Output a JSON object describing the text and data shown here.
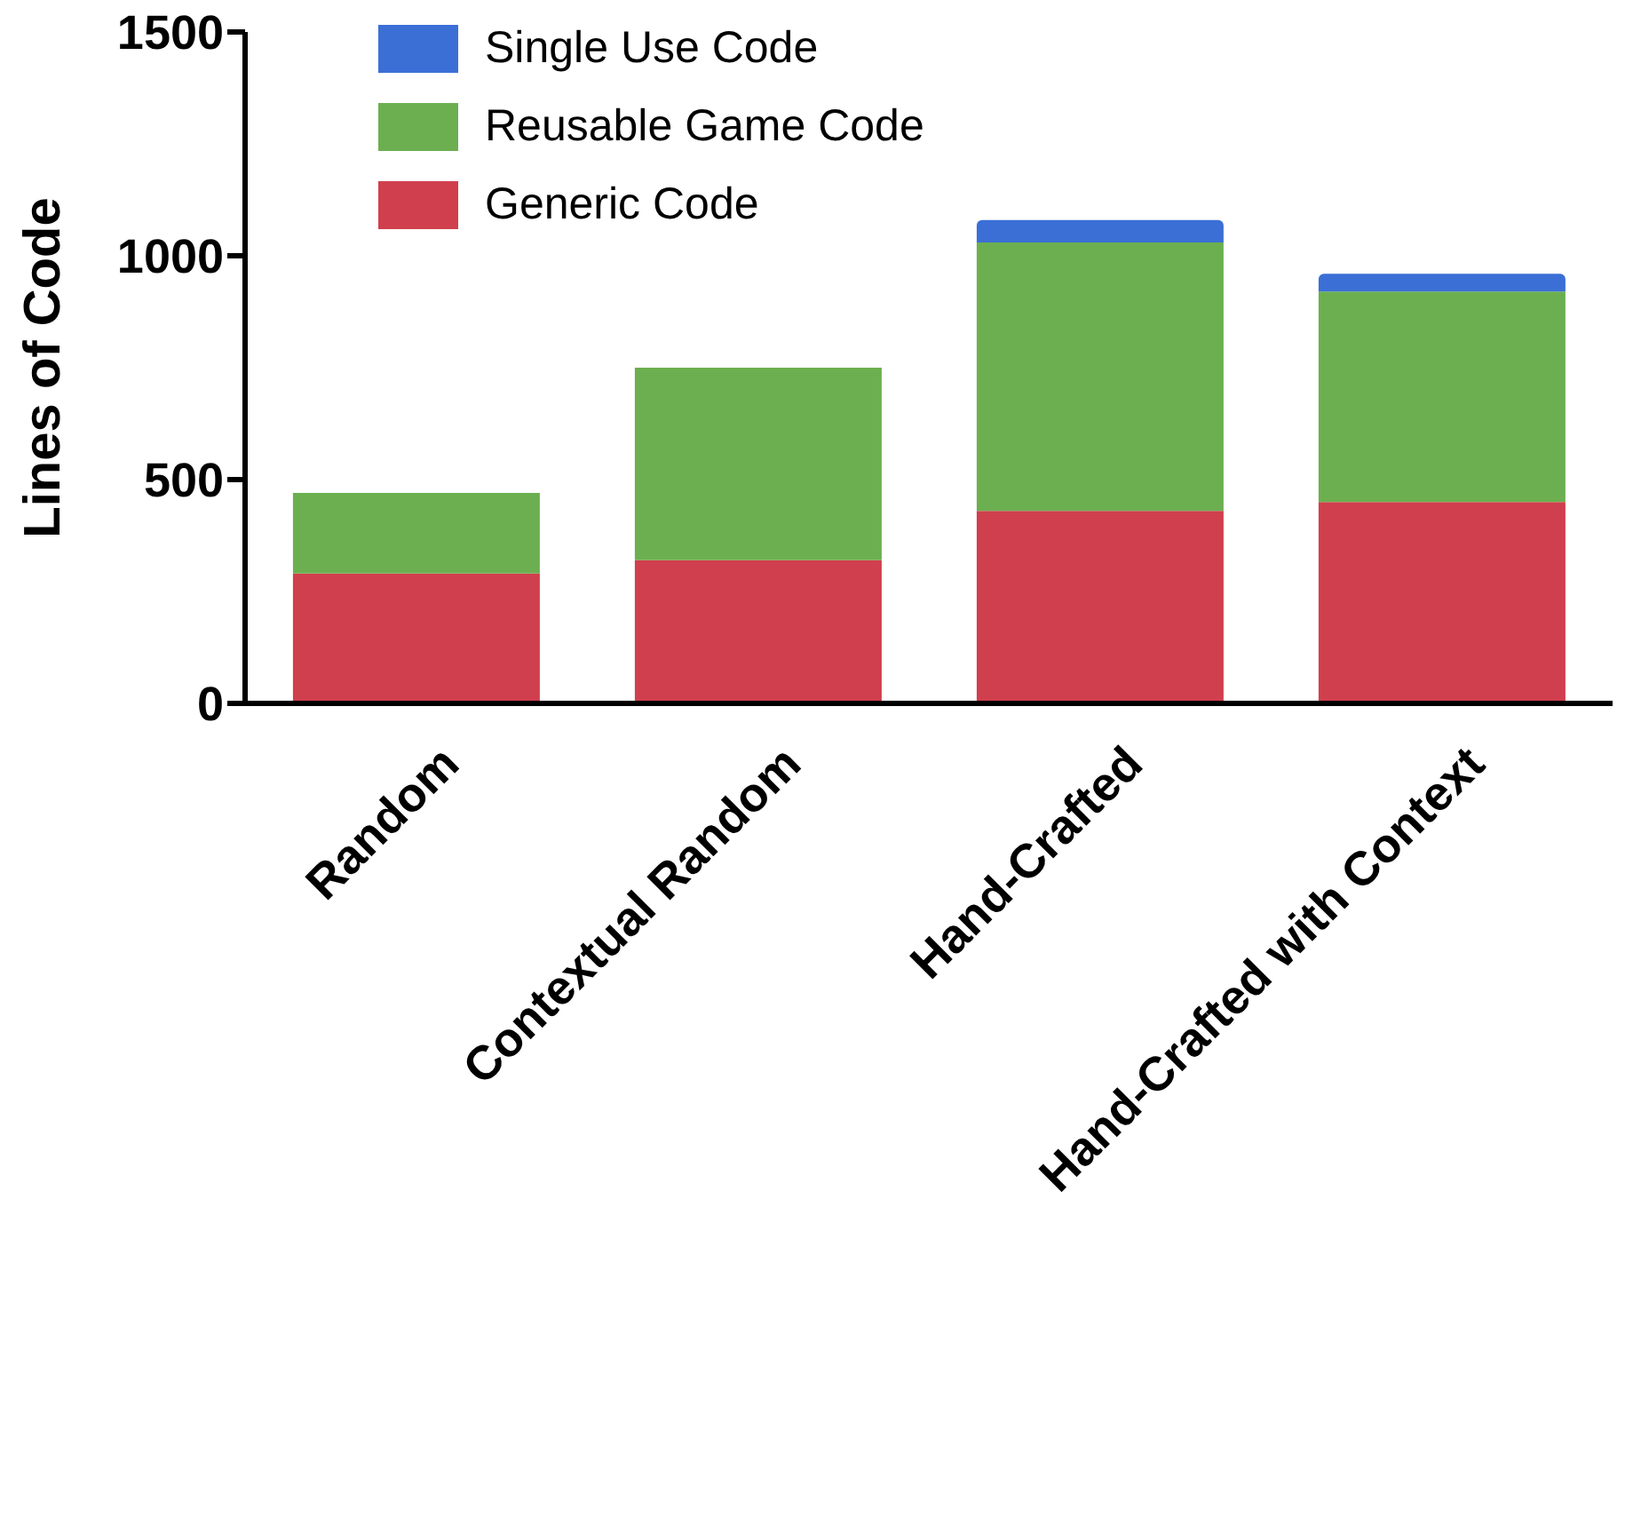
{
  "chart_data": {
    "type": "bar",
    "ylabel": "Lines of Code",
    "categories": [
      "Random",
      "Contextual Random",
      "Hand-Crafted",
      "Hand-Crafted with Context"
    ],
    "series": [
      {
        "name": "Generic Code",
        "color": "#d03f4d",
        "values": [
          290,
          320,
          430,
          450
        ]
      },
      {
        "name": "Reusable Game Code",
        "color": "#6caf50",
        "values": [
          180,
          430,
          600,
          470
        ]
      },
      {
        "name": "Single Use Code",
        "color": "#3b6fd6",
        "values": [
          null,
          null,
          50,
          40
        ]
      }
    ],
    "stacked": true,
    "ylim": [
      0,
      1500
    ],
    "yticks": [
      0,
      500,
      1000,
      1500
    ],
    "grid": false,
    "legend": "top left"
  }
}
